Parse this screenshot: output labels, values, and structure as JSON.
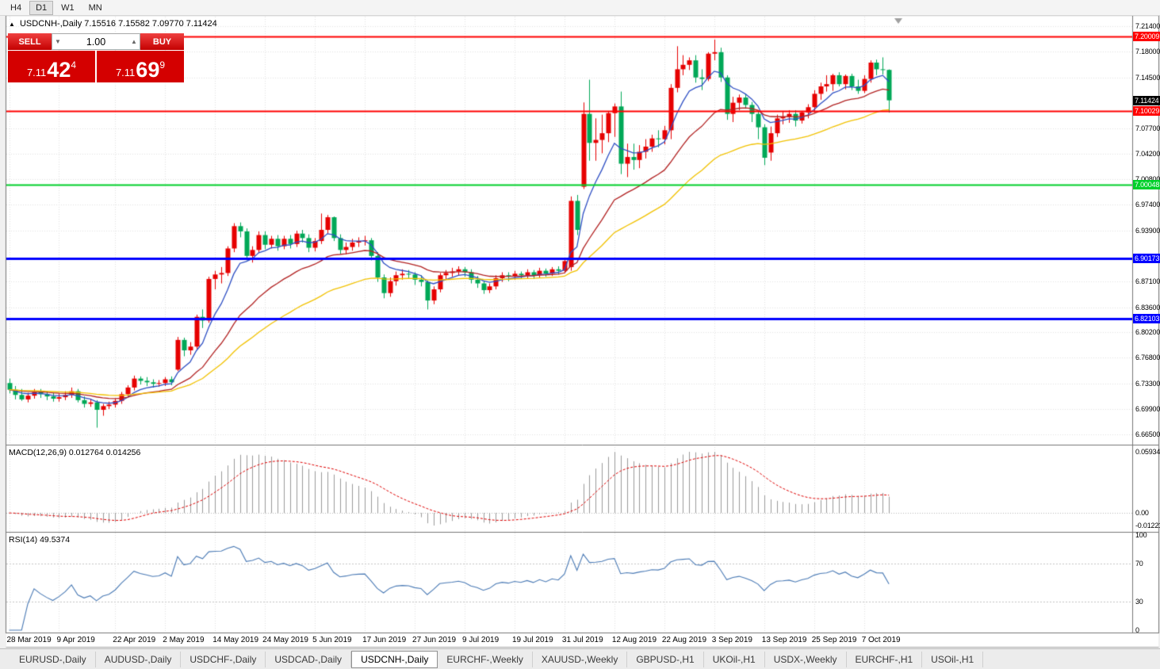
{
  "toolbar": {
    "periods": [
      "H4",
      "D1",
      "W1",
      "MN"
    ],
    "active": "D1"
  },
  "icons": {
    "collapse": "▲",
    "spin_up": "▲",
    "spin_down": "▼"
  },
  "chart": {
    "title_symbol": "USDCNH-,Daily",
    "title_ohlc": "7.15516 7.15582 7.09770 7.11424"
  },
  "one_click": {
    "sell_label": "SELL",
    "buy_label": "BUY",
    "volume": "1.00",
    "sell_price": {
      "small": "7.11",
      "big": "42",
      "pip": "4"
    },
    "buy_price": {
      "small": "7.11",
      "big": "69",
      "pip": "9"
    }
  },
  "price_axis": {
    "ticks": [
      "7.21400",
      "7.18000",
      "7.14500",
      "7.07700",
      "7.04200",
      "7.00800",
      "6.97400",
      "6.93900",
      "6.87100",
      "6.83600",
      "6.80200",
      "6.76800",
      "6.73300",
      "6.69900",
      "6.66500"
    ],
    "current": {
      "label": "7.11424",
      "price": 7.11424,
      "color": "#000000"
    }
  },
  "indicators": {
    "macd": {
      "label": "MACD(12,26,9) 0.012764 0.014256",
      "params": [
        12,
        26,
        9
      ],
      "axis": [
        {
          "label": "0.0593440",
          "value": 0.059344
        },
        {
          "label": "0.00",
          "value": 0
        },
        {
          "label": "-0.0122190",
          "value": -0.012219
        }
      ],
      "histogram_color": "#9a9a9a",
      "signal_color": "#e00000"
    },
    "rsi": {
      "label": "RSI(14) 49.5374",
      "period": 14,
      "axis": [
        {
          "label": "100",
          "value": 100
        },
        {
          "label": "70",
          "value": 70
        },
        {
          "label": "30",
          "value": 30
        },
        {
          "label": "0",
          "value": 0
        }
      ],
      "levels": [
        70,
        30
      ],
      "line_color": "#4a7ab5"
    }
  },
  "tabs": {
    "items": [
      "EURUSD-,Daily",
      "AUDUSD-,Daily",
      "USDCHF-,Daily",
      "USDCAD-,Daily",
      "USDCNH-,Daily",
      "EURCHF-,Weekly",
      "XAUUSD-,Weekly",
      "GBPUSD-,H1",
      "UKOil-,H1",
      "USDX-,Weekly",
      "EURCHF-,H1",
      "USOil-,H1"
    ],
    "active": "USDCNH-,Daily"
  },
  "chart_data": {
    "type": "candlestick",
    "symbol": "USDCNH-",
    "timeframe": "Daily",
    "up_color": "#e60000",
    "down_color": "#00a857",
    "grid_color": "#e2e2e2",
    "price_range": [
      6.665,
      7.214
    ],
    "x_labels": [
      [
        0,
        "28 Mar 2019"
      ],
      [
        8,
        "9 Apr 2019"
      ],
      [
        17,
        "22 Apr 2019"
      ],
      [
        25,
        "2 May 2019"
      ],
      [
        33,
        "14 May 2019"
      ],
      [
        41,
        "24 May 2019"
      ],
      [
        49,
        "5 Jun 2019"
      ],
      [
        57,
        "17 Jun 2019"
      ],
      [
        65,
        "27 Jun 2019"
      ],
      [
        73,
        "9 Jul 2019"
      ],
      [
        81,
        "19 Jul 2019"
      ],
      [
        89,
        "31 Jul 2019"
      ],
      [
        97,
        "12 Aug 2019"
      ],
      [
        105,
        "22 Aug 2019"
      ],
      [
        113,
        "3 Sep 2019"
      ],
      [
        121,
        "13 Sep 2019"
      ],
      [
        129,
        "25 Sep 2019"
      ],
      [
        137,
        "7 Oct 2019"
      ]
    ],
    "ma": [
      {
        "period": 7,
        "color": "#2e4fc4"
      },
      {
        "period": 20,
        "color": "#b22222"
      },
      {
        "period": 40,
        "color": "#f2c200"
      }
    ],
    "hlines": [
      {
        "label": "7.20009",
        "price": 7.20009,
        "color": "#ff0000",
        "width": 2
      },
      {
        "label": "7.10029",
        "price": 7.10029,
        "color": "#ff0000",
        "width": 2
      },
      {
        "label": "7.00048",
        "price": 7.00048,
        "color": "#00d02a",
        "width": 2
      },
      {
        "label": "6.90173",
        "price": 6.90173,
        "color": "#0000ff",
        "width": 3
      },
      {
        "label": "6.82103",
        "price": 6.82103,
        "color": "#0000ff",
        "width": 3
      }
    ],
    "candles": [
      [
        6.734,
        6.74,
        6.72,
        6.725
      ],
      [
        6.725,
        6.73,
        6.712,
        6.718
      ],
      [
        6.718,
        6.726,
        6.71,
        6.712
      ],
      [
        6.712,
        6.721,
        6.708,
        6.717
      ],
      [
        6.717,
        6.726,
        6.713,
        6.722
      ],
      [
        6.722,
        6.726,
        6.714,
        6.719
      ],
      [
        6.719,
        6.723,
        6.711,
        6.716
      ],
      [
        6.716,
        6.721,
        6.709,
        6.713
      ],
      [
        6.713,
        6.72,
        6.709,
        6.715
      ],
      [
        6.715,
        6.723,
        6.711,
        6.718
      ],
      [
        6.718,
        6.728,
        6.714,
        6.723
      ],
      [
        6.723,
        6.726,
        6.708,
        6.711
      ],
      [
        6.711,
        6.716,
        6.701,
        6.706
      ],
      [
        6.706,
        6.713,
        6.702,
        6.708
      ],
      [
        6.708,
        6.711,
        6.674,
        6.698
      ],
      [
        6.698,
        6.706,
        6.69,
        6.703
      ],
      [
        6.703,
        6.709,
        6.699,
        6.705
      ],
      [
        6.705,
        6.713,
        6.701,
        6.71
      ],
      [
        6.71,
        6.722,
        6.706,
        6.719
      ],
      [
        6.719,
        6.731,
        6.715,
        6.728
      ],
      [
        6.728,
        6.744,
        6.724,
        6.74
      ],
      [
        6.74,
        6.743,
        6.732,
        6.737
      ],
      [
        6.737,
        6.742,
        6.73,
        6.735
      ],
      [
        6.735,
        6.739,
        6.728,
        6.733
      ],
      [
        6.733,
        6.738,
        6.729,
        6.734
      ],
      [
        6.734,
        6.742,
        6.73,
        6.739
      ],
      [
        6.739,
        6.743,
        6.731,
        6.735
      ],
      [
        6.752,
        6.796,
        6.75,
        6.792
      ],
      [
        6.792,
        6.795,
        6.77,
        6.778
      ],
      [
        6.778,
        6.789,
        6.772,
        6.783
      ],
      [
        6.783,
        6.826,
        6.78,
        6.823
      ],
      [
        6.823,
        6.833,
        6.808,
        6.818
      ],
      [
        6.818,
        6.877,
        6.815,
        6.874
      ],
      [
        6.874,
        6.885,
        6.86,
        6.88
      ],
      [
        6.88,
        6.89,
        6.868,
        6.882
      ],
      [
        6.882,
        6.918,
        6.878,
        6.915
      ],
      [
        6.915,
        6.949,
        6.91,
        6.945
      ],
      [
        6.945,
        6.95,
        6.93,
        6.938
      ],
      [
        6.938,
        6.942,
        6.899,
        6.905
      ],
      [
        6.905,
        6.918,
        6.896,
        6.913
      ],
      [
        6.913,
        6.938,
        6.909,
        6.933
      ],
      [
        6.933,
        6.938,
        6.914,
        6.92
      ],
      [
        6.92,
        6.932,
        6.915,
        6.928
      ],
      [
        6.928,
        6.933,
        6.912,
        6.918
      ],
      [
        6.918,
        6.932,
        6.914,
        6.928
      ],
      [
        6.928,
        6.933,
        6.915,
        6.921
      ],
      [
        6.921,
        6.939,
        6.917,
        6.935
      ],
      [
        6.935,
        6.94,
        6.923,
        6.929
      ],
      [
        6.929,
        6.934,
        6.91,
        6.916
      ],
      [
        6.916,
        6.929,
        6.911,
        6.925
      ],
      [
        6.925,
        6.962,
        6.921,
        6.94
      ],
      [
        6.94,
        6.96,
        6.935,
        6.957
      ],
      [
        6.957,
        6.958,
        6.925,
        6.929
      ],
      [
        6.929,
        6.934,
        6.908,
        6.913
      ],
      [
        6.913,
        6.923,
        6.907,
        6.917
      ],
      [
        6.917,
        6.928,
        6.912,
        6.923
      ],
      [
        6.923,
        6.93,
        6.917,
        6.925
      ],
      [
        6.925,
        6.932,
        6.919,
        6.926
      ],
      [
        6.926,
        6.929,
        6.899,
        6.905
      ],
      [
        6.905,
        6.91,
        6.87,
        6.876
      ],
      [
        6.876,
        6.88,
        6.848,
        6.855
      ],
      [
        6.855,
        6.876,
        6.85,
        6.871
      ],
      [
        6.871,
        6.884,
        6.865,
        6.879
      ],
      [
        6.879,
        6.887,
        6.873,
        6.881
      ],
      [
        6.881,
        6.886,
        6.874,
        6.88
      ],
      [
        6.88,
        6.883,
        6.866,
        6.873
      ],
      [
        6.873,
        6.879,
        6.864,
        6.87
      ],
      [
        6.87,
        6.872,
        6.833,
        6.845
      ],
      [
        6.845,
        6.864,
        6.84,
        6.86
      ],
      [
        6.86,
        6.882,
        6.856,
        6.879
      ],
      [
        6.879,
        6.886,
        6.874,
        6.882
      ],
      [
        6.882,
        6.889,
        6.877,
        6.884
      ],
      [
        6.884,
        6.891,
        6.879,
        6.887
      ],
      [
        6.887,
        6.89,
        6.877,
        6.883
      ],
      [
        6.883,
        6.887,
        6.868,
        6.873
      ],
      [
        6.873,
        6.878,
        6.862,
        6.868
      ],
      [
        6.868,
        6.872,
        6.854,
        6.859
      ],
      [
        6.859,
        6.868,
        6.855,
        6.864
      ],
      [
        6.864,
        6.879,
        6.86,
        6.875
      ],
      [
        6.875,
        6.883,
        6.87,
        6.879
      ],
      [
        6.879,
        6.883,
        6.871,
        6.877
      ],
      [
        6.877,
        6.885,
        6.873,
        6.881
      ],
      [
        6.881,
        6.884,
        6.874,
        6.879
      ],
      [
        6.879,
        6.887,
        6.875,
        6.883
      ],
      [
        6.883,
        6.886,
        6.874,
        6.879
      ],
      [
        6.879,
        6.889,
        6.876,
        6.885
      ],
      [
        6.885,
        6.888,
        6.877,
        6.881
      ],
      [
        6.881,
        6.89,
        6.878,
        6.887
      ],
      [
        6.887,
        6.891,
        6.88,
        6.885
      ],
      [
        6.885,
        6.902,
        6.882,
        6.898
      ],
      [
        6.89,
        6.985,
        6.885,
        6.979
      ],
      [
        6.979,
        6.987,
        6.933,
        6.94
      ],
      [
        6.998,
        7.1114,
        6.995,
        7.096
      ],
      [
        7.096,
        7.142,
        7.033,
        7.057
      ],
      [
        7.057,
        7.09,
        7.033,
        7.061
      ],
      [
        7.061,
        7.095,
        7.043,
        7.07
      ],
      [
        7.07,
        7.1,
        7.058,
        7.097
      ],
      [
        7.097,
        7.11,
        7.065,
        7.106
      ],
      [
        7.106,
        7.126,
        7.015,
        7.029
      ],
      [
        7.029,
        7.056,
        7.011,
        7.038
      ],
      [
        7.038,
        7.056,
        7.021,
        7.034
      ],
      [
        7.034,
        7.054,
        7.023,
        7.045
      ],
      [
        7.045,
        7.062,
        7.036,
        7.052
      ],
      [
        7.052,
        7.068,
        7.045,
        7.063
      ],
      [
        7.063,
        7.074,
        7.051,
        7.062
      ],
      [
        7.062,
        7.08,
        7.055,
        7.074
      ],
      [
        7.074,
        7.136,
        7.062,
        7.131
      ],
      [
        7.131,
        7.187,
        7.125,
        7.156
      ],
      [
        7.156,
        7.175,
        7.148,
        7.162
      ],
      [
        7.162,
        7.172,
        7.155,
        7.168
      ],
      [
        7.168,
        7.175,
        7.138,
        7.145
      ],
      [
        7.145,
        7.156,
        7.128,
        7.143
      ],
      [
        7.143,
        7.179,
        7.14,
        7.177
      ],
      [
        7.177,
        7.196,
        7.168,
        7.179
      ],
      [
        7.179,
        7.185,
        7.139,
        7.145
      ],
      [
        7.145,
        7.148,
        7.088,
        7.096
      ],
      [
        7.096,
        7.119,
        7.085,
        7.111
      ],
      [
        7.111,
        7.122,
        7.101,
        7.118
      ],
      [
        7.118,
        7.123,
        7.103,
        7.108
      ],
      [
        7.108,
        7.112,
        7.085,
        7.096
      ],
      [
        7.096,
        7.1,
        7.062,
        7.078
      ],
      [
        7.078,
        7.082,
        7.027,
        7.037
      ],
      [
        7.044,
        7.079,
        7.033,
        7.07
      ],
      [
        7.07,
        7.095,
        7.065,
        7.09
      ],
      [
        7.09,
        7.1,
        7.082,
        7.092
      ],
      [
        7.092,
        7.101,
        7.084,
        7.096
      ],
      [
        7.096,
        7.101,
        7.079,
        7.087
      ],
      [
        7.087,
        7.1,
        7.083,
        7.098
      ],
      [
        7.098,
        7.109,
        7.09,
        7.105
      ],
      [
        7.105,
        7.128,
        7.098,
        7.123
      ],
      [
        7.123,
        7.138,
        7.115,
        7.133
      ],
      [
        7.133,
        7.148,
        7.126,
        7.136
      ],
      [
        7.136,
        7.15,
        7.127,
        7.148
      ],
      [
        7.148,
        7.152,
        7.133,
        7.136
      ],
      [
        7.136,
        7.149,
        7.129,
        7.147
      ],
      [
        7.147,
        7.15,
        7.128,
        7.133
      ],
      [
        7.133,
        7.142,
        7.123,
        7.127
      ],
      [
        7.127,
        7.148,
        7.124,
        7.143
      ],
      [
        7.143,
        7.168,
        7.138,
        7.165
      ],
      [
        7.165,
        7.169,
        7.148,
        7.156
      ],
      [
        7.156,
        7.172,
        7.149,
        7.1552
      ],
      [
        7.15516,
        7.15582,
        7.0977,
        7.11424
      ]
    ]
  }
}
